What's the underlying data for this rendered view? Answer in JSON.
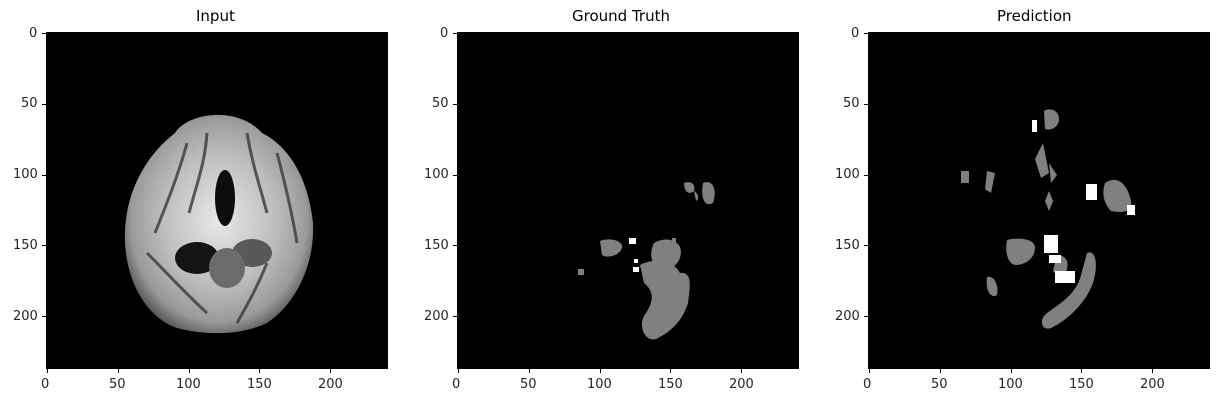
{
  "panels": [
    {
      "title": "Input",
      "x_ticks": [
        "0",
        "50",
        "100",
        "150",
        "200"
      ],
      "y_ticks": [
        "0",
        "50",
        "100",
        "150",
        "200"
      ]
    },
    {
      "title": "Ground Truth",
      "x_ticks": [
        "0",
        "50",
        "100",
        "150",
        "200"
      ],
      "y_ticks": [
        "0",
        "50",
        "100",
        "150",
        "200"
      ]
    },
    {
      "title": "Prediction",
      "x_ticks": [
        "0",
        "50",
        "100",
        "150",
        "200"
      ],
      "y_ticks": [
        "0",
        "50",
        "100",
        "150",
        "200"
      ]
    }
  ],
  "image_size": 240,
  "colors": {
    "background": "#000000",
    "mask_gray": "#808080",
    "mask_white": "#ffffff"
  }
}
